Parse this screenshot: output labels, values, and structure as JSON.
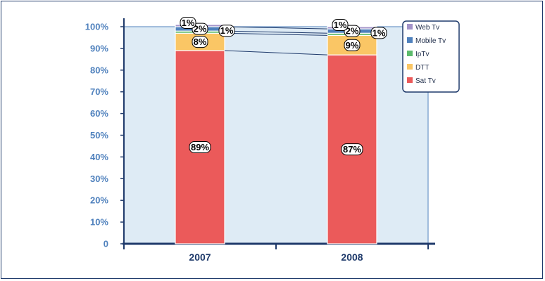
{
  "chart_data": {
    "type": "bar",
    "stacked": true,
    "categories": [
      "2007",
      "2008"
    ],
    "y_ticks": [
      "0",
      "10%",
      "20%",
      "30%",
      "40%",
      "50%",
      "60%",
      "70%",
      "80%",
      "90%",
      "100%"
    ],
    "ylim": [
      0,
      100
    ],
    "grid": false,
    "legend_position": "top-right",
    "series": [
      {
        "name": "Sat Tv",
        "color": "#eb5a5a",
        "values": [
          89,
          87
        ],
        "labels": [
          "89%",
          "87%"
        ]
      },
      {
        "name": "DTT",
        "color": "#fac665",
        "values": [
          8,
          9
        ],
        "labels": [
          "8%",
          "9%"
        ]
      },
      {
        "name": "IpTv",
        "color": "#5cbb6c",
        "values": [
          1,
          1
        ],
        "labels": [
          "1%",
          "1%"
        ]
      },
      {
        "name": "Mobile Tv",
        "color": "#4f81bd",
        "values": [
          2,
          2
        ],
        "labels": [
          "2%",
          "2%"
        ]
      },
      {
        "name": "Web Tv",
        "color": "#a393c9",
        "values": [
          1,
          1
        ],
        "labels": [
          "1%",
          "1%"
        ]
      }
    ],
    "legend_order": [
      "Web Tv",
      "Mobile Tv",
      "IpTv",
      "DTT",
      "Sat Tv"
    ]
  }
}
